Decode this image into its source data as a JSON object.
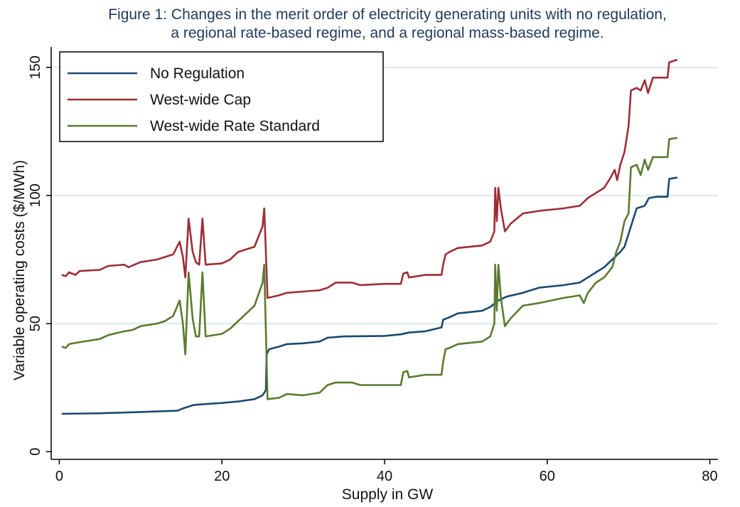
{
  "chart_data": {
    "type": "line",
    "title_lines": [
      "Figure 1: Changes in the merit order of electricity generating units with no regulation,",
      "a regional rate-based regime, and a regional mass-based regime."
    ],
    "xlabel": "Supply in GW",
    "ylabel": "Variable operating costs ($/MWh)",
    "xlim": [
      -1,
      81
    ],
    "ylim": [
      -3,
      158
    ],
    "xticks": [
      0,
      20,
      40,
      60,
      80
    ],
    "yticks": [
      0,
      50,
      100,
      150
    ],
    "grid": "horizontal",
    "legend_position": "top-left",
    "colors": {
      "No Regulation": "#1a4a72",
      "West-wide Cap": "#9e2d35",
      "West-wide Rate Standard": "#5a7a2e",
      "grid": "#e3ecea",
      "axis": "#000000",
      "title": "#1f3a5a"
    },
    "series": [
      {
        "name": "No Regulation",
        "color": "#1a4a72",
        "points": [
          [
            0.3,
            14.8
          ],
          [
            5,
            15
          ],
          [
            10,
            15.5
          ],
          [
            14.5,
            16
          ],
          [
            15.5,
            17.2
          ],
          [
            16.5,
            18.2
          ],
          [
            18,
            18.6
          ],
          [
            20,
            19
          ],
          [
            22,
            19.6
          ],
          [
            24,
            20.5
          ],
          [
            25,
            22
          ],
          [
            25.4,
            24
          ],
          [
            25.5,
            38
          ],
          [
            25.8,
            40
          ],
          [
            27,
            41
          ],
          [
            28,
            42
          ],
          [
            30,
            42.3
          ],
          [
            32,
            43
          ],
          [
            33,
            44.5
          ],
          [
            35,
            45
          ],
          [
            40,
            45.2
          ],
          [
            42,
            45.8
          ],
          [
            43,
            46.5
          ],
          [
            45,
            47
          ],
          [
            47,
            48.5
          ],
          [
            47.2,
            51.5
          ],
          [
            48,
            52.5
          ],
          [
            49,
            54
          ],
          [
            52,
            55
          ],
          [
            53,
            56.5
          ],
          [
            54,
            59
          ],
          [
            55,
            60.5
          ],
          [
            57,
            62
          ],
          [
            59,
            64
          ],
          [
            62,
            65
          ],
          [
            64,
            66
          ],
          [
            65,
            68
          ],
          [
            66,
            70
          ],
          [
            67,
            72
          ],
          [
            68,
            75
          ],
          [
            69,
            78
          ],
          [
            69.5,
            80
          ],
          [
            70,
            85
          ],
          [
            70.5,
            90
          ],
          [
            71,
            95
          ],
          [
            72,
            96
          ],
          [
            72.5,
            99
          ],
          [
            73.5,
            99.5
          ],
          [
            74.8,
            99.5
          ],
          [
            75,
            106.5
          ],
          [
            76,
            107
          ]
        ]
      },
      {
        "name": "West-wide Cap",
        "color": "#9e2d35",
        "points": [
          [
            0.3,
            69
          ],
          [
            0.8,
            68.5
          ],
          [
            1.2,
            70
          ],
          [
            2,
            69
          ],
          [
            2.5,
            70.5
          ],
          [
            5,
            71
          ],
          [
            6,
            72.5
          ],
          [
            8,
            73
          ],
          [
            8.5,
            72
          ],
          [
            10,
            74
          ],
          [
            12,
            75
          ],
          [
            13,
            76
          ],
          [
            14,
            77
          ],
          [
            14.8,
            82
          ],
          [
            15.2,
            76
          ],
          [
            15.5,
            68
          ],
          [
            15.9,
            91
          ],
          [
            16.4,
            78
          ],
          [
            16.8,
            74
          ],
          [
            17.2,
            73
          ],
          [
            17.6,
            91
          ],
          [
            18,
            73
          ],
          [
            20,
            73.5
          ],
          [
            21,
            75
          ],
          [
            22,
            78
          ],
          [
            24,
            80
          ],
          [
            25,
            88
          ],
          [
            25.2,
            95
          ],
          [
            25.5,
            70
          ],
          [
            25.6,
            60
          ],
          [
            27,
            61
          ],
          [
            28,
            62
          ],
          [
            30,
            62.5
          ],
          [
            32,
            63
          ],
          [
            33,
            64
          ],
          [
            34,
            66
          ],
          [
            36,
            66
          ],
          [
            37,
            65
          ],
          [
            40,
            65.5
          ],
          [
            42,
            65.5
          ],
          [
            42.3,
            69.5
          ],
          [
            42.8,
            70
          ],
          [
            43,
            68
          ],
          [
            45,
            69
          ],
          [
            47,
            69
          ],
          [
            47.2,
            73
          ],
          [
            47.5,
            77
          ],
          [
            48,
            78
          ],
          [
            49,
            79.5
          ],
          [
            52,
            80.5
          ],
          [
            53,
            82
          ],
          [
            53.5,
            86
          ],
          [
            53.6,
            103
          ],
          [
            53.8,
            90
          ],
          [
            54,
            103
          ],
          [
            54.3,
            95
          ],
          [
            54.8,
            86
          ],
          [
            55.5,
            89
          ],
          [
            57,
            93
          ],
          [
            59,
            94
          ],
          [
            62,
            95
          ],
          [
            64,
            96
          ],
          [
            65,
            99
          ],
          [
            66,
            101
          ],
          [
            67,
            103
          ],
          [
            67.8,
            107
          ],
          [
            68.3,
            110
          ],
          [
            68.6,
            106
          ],
          [
            69,
            112
          ],
          [
            69.5,
            117
          ],
          [
            70,
            127
          ],
          [
            70.3,
            141
          ],
          [
            71,
            142
          ],
          [
            71.5,
            141
          ],
          [
            72,
            145
          ],
          [
            72.4,
            140
          ],
          [
            73,
            146
          ],
          [
            74.8,
            146
          ],
          [
            75,
            152
          ],
          [
            76,
            153
          ]
        ]
      },
      {
        "name": "West-wide Rate Standard",
        "color": "#5a7a2e",
        "points": [
          [
            0.3,
            41
          ],
          [
            0.8,
            40.5
          ],
          [
            1.2,
            42
          ],
          [
            2,
            42.5
          ],
          [
            5,
            44
          ],
          [
            6,
            45.5
          ],
          [
            8,
            47
          ],
          [
            9,
            47.5
          ],
          [
            10,
            49
          ],
          [
            12,
            50
          ],
          [
            13,
            51
          ],
          [
            14,
            53
          ],
          [
            14.8,
            59
          ],
          [
            15.2,
            50
          ],
          [
            15.5,
            38
          ],
          [
            15.9,
            70
          ],
          [
            16.4,
            52
          ],
          [
            16.8,
            45
          ],
          [
            17.2,
            45
          ],
          [
            17.6,
            70
          ],
          [
            18,
            45
          ],
          [
            20,
            46
          ],
          [
            21,
            48
          ],
          [
            22,
            51
          ],
          [
            24,
            57
          ],
          [
            25,
            66
          ],
          [
            25.2,
            73
          ],
          [
            25.5,
            35
          ],
          [
            25.6,
            20.5
          ],
          [
            27,
            21
          ],
          [
            28,
            22.5
          ],
          [
            30,
            22
          ],
          [
            32,
            23
          ],
          [
            33,
            26
          ],
          [
            34,
            27
          ],
          [
            36,
            27
          ],
          [
            37,
            26
          ],
          [
            40,
            26
          ],
          [
            42,
            26
          ],
          [
            42.3,
            31
          ],
          [
            42.8,
            31.5
          ],
          [
            43,
            29
          ],
          [
            45,
            30
          ],
          [
            47,
            30
          ],
          [
            47.2,
            35
          ],
          [
            47.5,
            40
          ],
          [
            48,
            40.5
          ],
          [
            49,
            42
          ],
          [
            52,
            43
          ],
          [
            53,
            45
          ],
          [
            53.5,
            50
          ],
          [
            53.6,
            73
          ],
          [
            53.8,
            55
          ],
          [
            54,
            73
          ],
          [
            54.3,
            60
          ],
          [
            54.8,
            49
          ],
          [
            55.5,
            52
          ],
          [
            57,
            57
          ],
          [
            59,
            58
          ],
          [
            62,
            60
          ],
          [
            64,
            61
          ],
          [
            64.5,
            58
          ],
          [
            65,
            62
          ],
          [
            66,
            66
          ],
          [
            67,
            68
          ],
          [
            68,
            72
          ],
          [
            68.5,
            78
          ],
          [
            69,
            82
          ],
          [
            69.5,
            90
          ],
          [
            70,
            93
          ],
          [
            70.3,
            111
          ],
          [
            71,
            112
          ],
          [
            71.5,
            108
          ],
          [
            72,
            114
          ],
          [
            72.4,
            110
          ],
          [
            73,
            115
          ],
          [
            74.8,
            115
          ],
          [
            75,
            122
          ],
          [
            76,
            122.5
          ]
        ]
      }
    ]
  }
}
